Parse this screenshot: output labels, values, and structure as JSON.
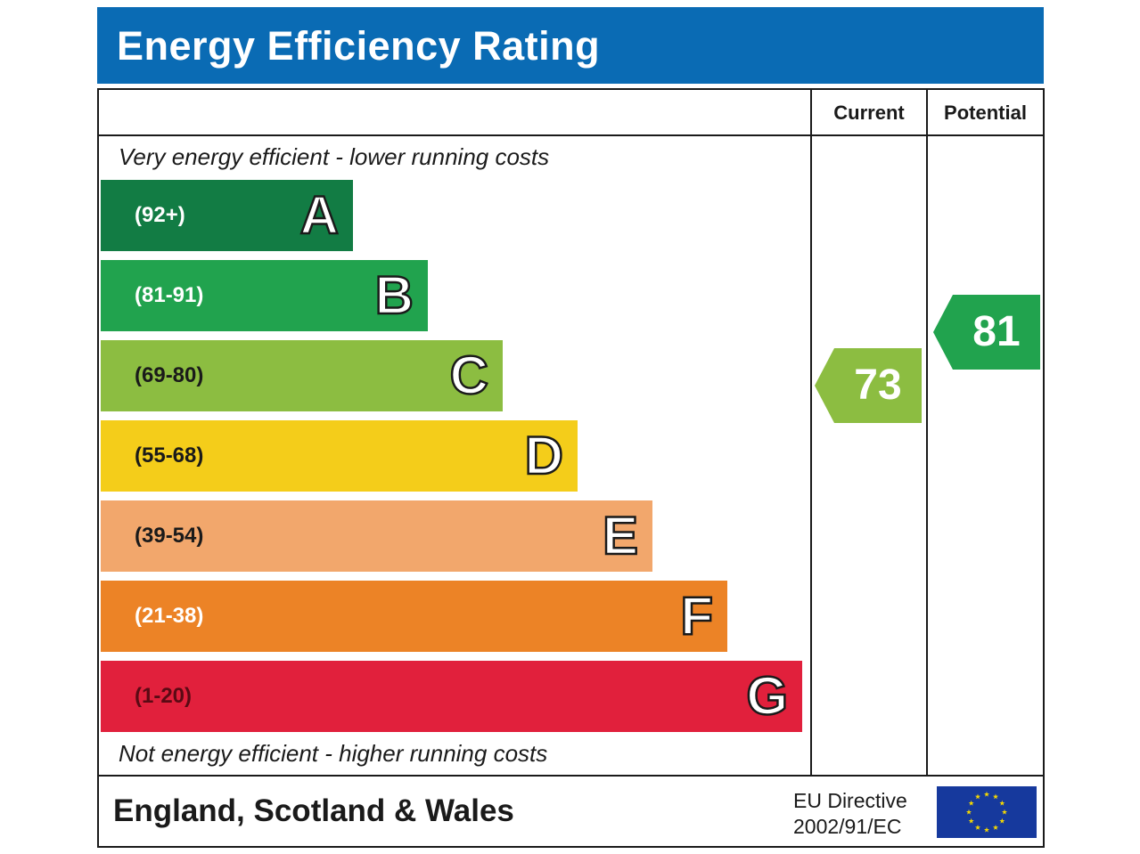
{
  "title": "Energy Efficiency Rating",
  "columns": {
    "current": "Current",
    "potential": "Potential"
  },
  "top_note": "Very energy efficient - lower running costs",
  "bottom_note": "Not energy efficient - higher running costs",
  "footer": {
    "region": "England, Scotland & Wales",
    "directive_line1": "EU Directive",
    "directive_line2": "2002/91/EC"
  },
  "colors": {
    "header": "#0a6bb4",
    "A": "#127c44",
    "B": "#21a34e",
    "C": "#8cbd41",
    "D": "#f4cd1a",
    "E": "#f2a76c",
    "F": "#ec8326",
    "G": "#e1203c",
    "eu_flag": "#16399d",
    "eu_stars": "#f5d800"
  },
  "chart_data": {
    "type": "bar",
    "categories": [
      "A",
      "B",
      "C",
      "D",
      "E",
      "F",
      "G"
    ],
    "ranges": [
      "(92+)",
      "(81-91)",
      "(69-80)",
      "(55-68)",
      "(39-54)",
      "(21-38)",
      "(1-20)"
    ],
    "range_min": [
      92,
      81,
      69,
      55,
      39,
      21,
      1
    ],
    "range_max": [
      100,
      91,
      80,
      68,
      54,
      38,
      20
    ],
    "current": {
      "value": "73",
      "band": "C"
    },
    "potential": {
      "value": "81",
      "band": "B"
    }
  }
}
